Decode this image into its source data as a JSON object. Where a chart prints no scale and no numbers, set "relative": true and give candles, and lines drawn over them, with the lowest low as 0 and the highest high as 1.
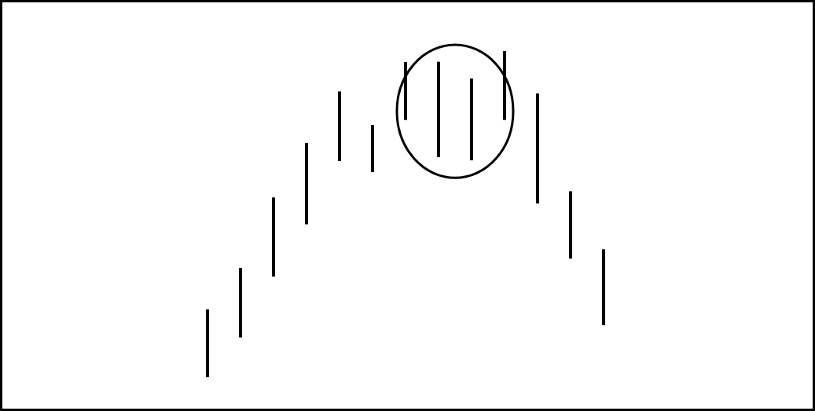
{
  "chart_data": {
    "type": "candlestick",
    "relative": true,
    "categories": [
      null,
      null,
      null,
      null,
      null,
      null,
      null,
      null,
      null,
      null,
      null,
      null,
      null
    ],
    "ohlc": [
      [
        0,
        0.208,
        0,
        0.208
      ],
      [
        0.122,
        0.335,
        0.122,
        0.335
      ],
      [
        0.309,
        0.551,
        0.309,
        0.551
      ],
      [
        0.469,
        0.718,
        0.469,
        0.718
      ],
      [
        0.663,
        0.876,
        0.663,
        0.876
      ],
      [
        0.629,
        0.773,
        0.629,
        0.773
      ],
      [
        0.789,
        0.966,
        0.789,
        0.966
      ],
      [
        0.675,
        0.967,
        0.675,
        0.967
      ],
      [
        0.665,
        0.916,
        0.665,
        0.916
      ],
      [
        0.789,
        1,
        0.789,
        1
      ],
      [
        0.533,
        0.87,
        0.533,
        0.87
      ],
      [
        0.364,
        0.57,
        0.364,
        0.57
      ],
      [
        0.16,
        0.392,
        0.16,
        0.392
      ]
    ],
    "color": "#000000"
  }
}
